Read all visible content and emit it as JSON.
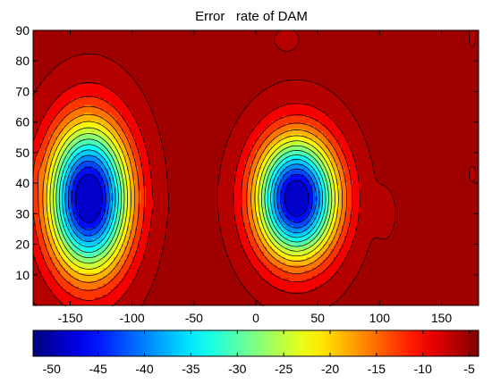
{
  "chart_data": {
    "type": "heatmap",
    "title": "Error   rate of DAM",
    "xlabel": "",
    "ylabel": "",
    "xlim": [
      -180,
      180
    ],
    "ylim": [
      0,
      90
    ],
    "xticks": [
      -150,
      -100,
      -50,
      0,
      50,
      100,
      150
    ],
    "yticks": [
      10,
      20,
      30,
      40,
      50,
      60,
      70,
      80,
      90
    ],
    "colorbar": {
      "orientation": "horizontal",
      "placement": "bottom",
      "range": [
        -52,
        -4
      ],
      "ticks": [
        -50,
        -45,
        -40,
        -35,
        -30,
        -25,
        -20,
        -15,
        -10,
        -5
      ]
    },
    "background_value": -4,
    "contour_levels": [
      -5,
      -8,
      -11,
      -14,
      -17,
      -20,
      -23,
      -26,
      -29,
      -32,
      -35,
      -38,
      -41,
      -44,
      -47
    ],
    "features": [
      {
        "lon": -135,
        "lat": 35,
        "sx": 23,
        "sy": 17,
        "min": -52
      },
      {
        "lon": 33,
        "lat": 35,
        "sx": 23,
        "sy": 14,
        "min": -51
      },
      {
        "lon": 105,
        "lat": 30,
        "sx": 6,
        "sy": 6,
        "min": -6
      },
      {
        "lon": -78,
        "lat": 33,
        "sx": 3,
        "sy": 2,
        "min": -5.5
      },
      {
        "lon": 25,
        "lat": 87,
        "sx": 8,
        "sy": 3,
        "min": -6
      },
      {
        "lon": 175,
        "lat": 88,
        "sx": 3,
        "sy": 4,
        "min": -5.5
      },
      {
        "lon": 175,
        "lat": 43,
        "sx": 3,
        "sy": 3,
        "min": -5.5
      },
      {
        "lon": -177,
        "lat": 45,
        "sx": 2,
        "sy": 4,
        "min": -5.5
      }
    ]
  }
}
